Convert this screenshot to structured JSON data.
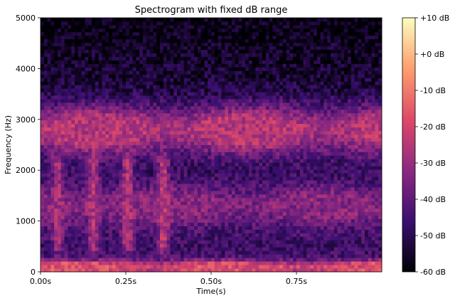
{
  "chart_data": {
    "type": "heatmap",
    "title": "Spectrogram with fixed dB range",
    "xlabel": "Time(s)",
    "ylabel": "Frequency (Hz)",
    "xlim": [
      0,
      1.0
    ],
    "ylim": [
      0,
      5000
    ],
    "x_ticks": [
      0,
      0.25,
      0.5,
      0.75
    ],
    "x_tick_labels": [
      "0.00s",
      "0.25s",
      "0.50s",
      "0.75s"
    ],
    "y_ticks": [
      0,
      1000,
      2000,
      3000,
      4000,
      5000
    ],
    "y_tick_labels": [
      "0",
      "1000",
      "2000",
      "3000",
      "4000",
      "5000"
    ],
    "colorbar": {
      "range": [
        -60,
        10
      ],
      "ticks": [
        10,
        0,
        -10,
        -20,
        -30,
        -40,
        -50,
        -60
      ],
      "tick_labels": [
        "+10 dB",
        "+0 dB",
        "-10 dB",
        "-20 dB",
        "-30 dB",
        "-40 dB",
        "-50 dB",
        "-60 dB"
      ],
      "colormap": "magma",
      "colormap_stops": [
        "#000004",
        "#3b0f70",
        "#8c2981",
        "#de4968",
        "#fe9f6d",
        "#fcfdbf"
      ]
    },
    "grid": false,
    "time_bins": 100,
    "frequency_bins": 72,
    "energy_bands_hz": [
      {
        "low": 0,
        "high": 180,
        "level_db": -18
      },
      {
        "low": 1050,
        "high": 1550,
        "level_db": -33
      },
      {
        "low": 2500,
        "high": 3100,
        "level_db": -25
      }
    ],
    "bursts": [
      {
        "time_s": 0.05,
        "low_hz": 550,
        "high_hz": 2150,
        "level_db": -28
      },
      {
        "time_s": 0.155,
        "low_hz": 550,
        "high_hz": 2150,
        "level_db": -26
      },
      {
        "time_s": 0.255,
        "low_hz": 550,
        "high_hz": 2150,
        "level_db": -26
      },
      {
        "time_s": 0.36,
        "low_hz": 550,
        "high_hz": 2150,
        "level_db": -24
      }
    ],
    "floor_db": -46,
    "top_floor_db": -58
  }
}
